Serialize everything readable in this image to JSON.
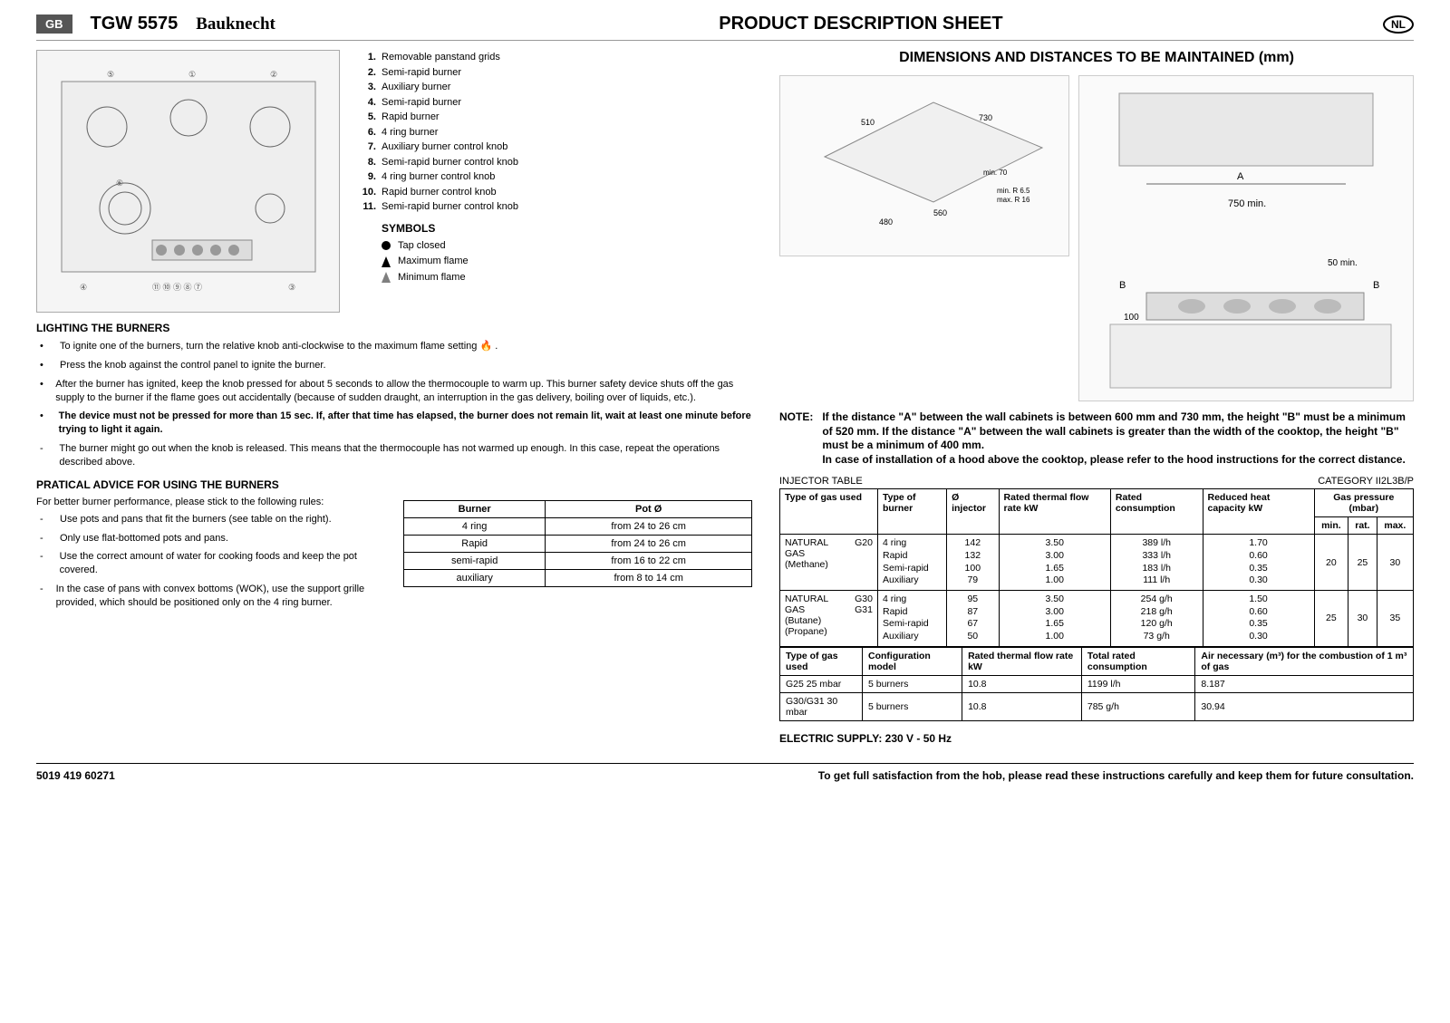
{
  "header": {
    "gb_badge": "GB",
    "model": "TGW 5575",
    "brand": "Bauknecht",
    "title": "PRODUCT DESCRIPTION SHEET",
    "nl_badge": "NL"
  },
  "parts": [
    "Removable panstand grids",
    "Semi-rapid burner",
    "Auxiliary burner",
    "Semi-rapid burner",
    "Rapid burner",
    "4 ring burner",
    "Auxiliary burner control knob",
    "Semi-rapid burner control knob",
    "4 ring burner control knob",
    "Rapid burner control knob",
    "Semi-rapid burner control knob"
  ],
  "symbols_title": "SYMBOLS",
  "symbols": {
    "closed": "Tap closed",
    "max": "Maximum flame",
    "min": "Minimum flame"
  },
  "lighting_title": "LIGHTING THE BURNERS",
  "lighting": [
    {
      "mk": "•",
      "text": "To ignite one of the burners, turn the relative knob anti-clockwise to the maximum flame setting  🔥 .",
      "bold": false
    },
    {
      "mk": "•",
      "text": "Press the knob against the control panel to ignite the burner.",
      "bold": false
    },
    {
      "mk": "•",
      "text": "After the burner has ignited, keep the knob pressed for about 5 seconds to allow the thermocouple to warm up. This burner safety device shuts off the gas supply to the burner if the flame goes out accidentally (because of sudden draught, an interruption in the gas delivery, boiling over of liquids, etc.).",
      "bold": false
    },
    {
      "mk": "•",
      "text": "The device must not be pressed for more than 15 sec. If, after that time has elapsed, the burner does not remain lit, wait at least one minute before trying to light it again.",
      "bold": true
    },
    {
      "mk": "-",
      "text": "The burner might go out when the knob is released. This means that the thermocouple has not warmed up enough. In this case, repeat the operations described above.",
      "bold": false
    }
  ],
  "advice_title": "PRATICAL ADVICE FOR USING THE BURNERS",
  "advice_intro": "For better burner performance, please stick to the following rules:",
  "advice": [
    "Use pots and pans that fit the burners (see table on the right).",
    "Only use flat-bottomed pots and pans.",
    "Use the correct amount of water for cooking foods and keep the pot covered.",
    "In the case of pans with convex bottoms (WOK), use the support grille provided, which should be positioned only on the 4 ring burner."
  ],
  "pot_table": {
    "headers": [
      "Burner",
      "Pot Ø"
    ],
    "rows": [
      [
        "4 ring",
        "from 24 to 26 cm"
      ],
      [
        "Rapid",
        "from 24 to 26 cm"
      ],
      [
        "semi-rapid",
        "from 16 to 22 cm"
      ],
      [
        "auxiliary",
        "from 8 to 14 cm"
      ]
    ]
  },
  "right_title": "DIMENSIONS AND DISTANCES TO BE MAINTAINED (mm)",
  "dim1_labels": "510 / 730 / min 70 / min. R 6.5 / max. R 16 / 480 / 560",
  "dim2_labels": "A / 750 min. / 50 min. / B / 100 / B",
  "note_label": "NOTE:",
  "note_text": "If the distance \"A\" between the wall cabinets is between 600 mm and 730 mm, the height \"B\" must be a minimum of 520 mm. If the distance \"A\" between the wall cabinets is greater than the width of the cooktop, the height \"B\" must be a minimum of 400 mm.\nIn case of installation of a hood above the cooktop, please refer to the hood instructions for the correct distance.",
  "inj_title": "INJECTOR TABLE",
  "inj_category": "CATEGORY II2L3B/P",
  "inj_headers": {
    "gas": "Type of gas used",
    "burner": "Type of burner",
    "inj": "Ø injector",
    "rated": "Rated thermal flow rate kW",
    "cons": "Rated consumption",
    "reduced": "Reduced heat capacity kW",
    "pressure": "Gas pressure (mbar)",
    "min": "min.",
    "rat": "rat.",
    "max": "max."
  },
  "inj_rows": [
    {
      "gas": "NATURAL GAS\n(Methane)",
      "code": "G20",
      "burners": [
        "4 ring",
        "Rapid",
        "Semi-rapid",
        "Auxiliary"
      ],
      "inj": [
        "142",
        "132",
        "100",
        "79"
      ],
      "rated": [
        "3.50",
        "3.00",
        "1.65",
        "1.00"
      ],
      "cons": [
        "389 l/h",
        "333 l/h",
        "183 l/h",
        "111 l/h"
      ],
      "reduced": [
        "1.70",
        "0.60",
        "0.35",
        "0.30"
      ],
      "pmin": "20",
      "prat": "25",
      "pmax": "30"
    },
    {
      "gas": "NATURAL GAS\n(Butane)\n(Propane)",
      "code": "G30\nG31",
      "burners": [
        "4 ring",
        "Rapid",
        "Semi-rapid",
        "Auxiliary"
      ],
      "inj": [
        "95",
        "87",
        "67",
        "50"
      ],
      "rated": [
        "3.50",
        "3.00",
        "1.65",
        "1.00"
      ],
      "cons": [
        "254 g/h",
        "218 g/h",
        "120 g/h",
        "73 g/h"
      ],
      "reduced": [
        "1.50",
        "0.60",
        "0.35",
        "0.30"
      ],
      "pmin": "25",
      "prat": "30",
      "pmax": "35"
    }
  ],
  "summary_headers": {
    "gas": "Type of gas used",
    "config": "Configuration model",
    "rated": "Rated thermal flow rate kW",
    "total": "Total rated consumption",
    "air": "Air necessary (m³) for the combustion of 1 m³ of gas"
  },
  "summary_rows": [
    {
      "gas": "G25 25 mbar",
      "config": "5 burners",
      "rated": "10.8",
      "total": "1199  l/h",
      "air": "8.187"
    },
    {
      "gas": "G30/G31 30 mbar",
      "config": "5 burners",
      "rated": "10.8",
      "total": "785  g/h",
      "air": "30.94"
    }
  ],
  "electric": "ELECTRIC SUPPLY: 230 V - 50 Hz",
  "footer": {
    "code": "5019 419 60271",
    "msg": "To get full satisfaction from the hob, please read these instructions carefully and keep them for future consultation."
  },
  "colors": {
    "border": "#000000",
    "bg": "#ffffff",
    "badge": "#555555"
  }
}
